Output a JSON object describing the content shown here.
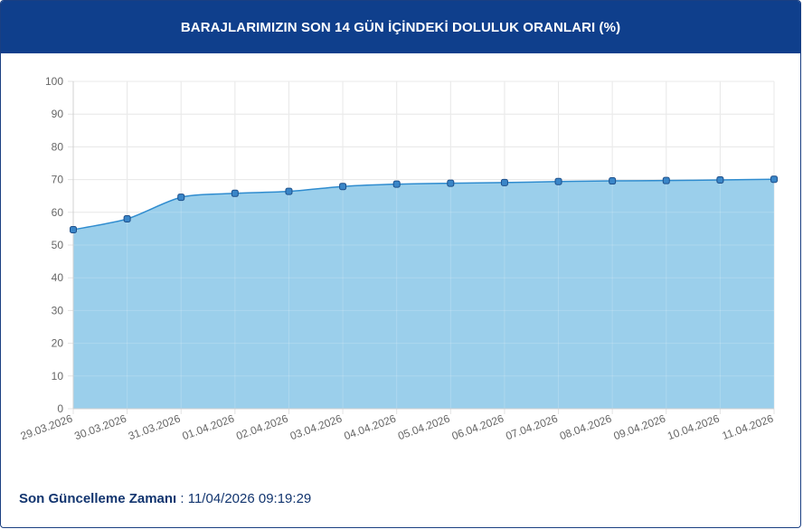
{
  "title": "BARAJLARIMIZIN SON 14 GÜN İÇİNDEKİ DOLULUK ORANLARI (%)",
  "footer": {
    "label": "Son Güncelleme Zamanı",
    "separator": " : ",
    "value": "11/04/2026 09:19:29"
  },
  "colors": {
    "header_bg": "#0f3f8c",
    "line": "#2f8ccf",
    "fill": "#9bcfeb",
    "point": "#3a86c8",
    "point_stroke": "#1d4f8a"
  },
  "chart_data": {
    "type": "area",
    "title": "BARAJLARIMIZIN SON 14 GÜN İÇİNDEKİ DOLULUK ORANLARI (%)",
    "xlabel": "",
    "ylabel": "",
    "categories": [
      "29.03.2026",
      "30.03.2026",
      "31.03.2026",
      "01.04.2026",
      "02.04.2026",
      "03.04.2026",
      "04.04.2026",
      "05.04.2026",
      "06.04.2026",
      "07.04.2026",
      "08.04.2026",
      "09.04.2026",
      "10.04.2026",
      "11.04.2026"
    ],
    "values": [
      54.7,
      58.0,
      64.6,
      65.8,
      66.4,
      67.9,
      68.6,
      68.9,
      69.1,
      69.4,
      69.6,
      69.7,
      69.9,
      70.1
    ],
    "ylim": [
      0,
      100
    ],
    "yticks": [
      "0",
      "10",
      "20",
      "30",
      "40",
      "50",
      "60",
      "70",
      "80",
      "90",
      "100"
    ],
    "grid": true,
    "legend": "none"
  }
}
